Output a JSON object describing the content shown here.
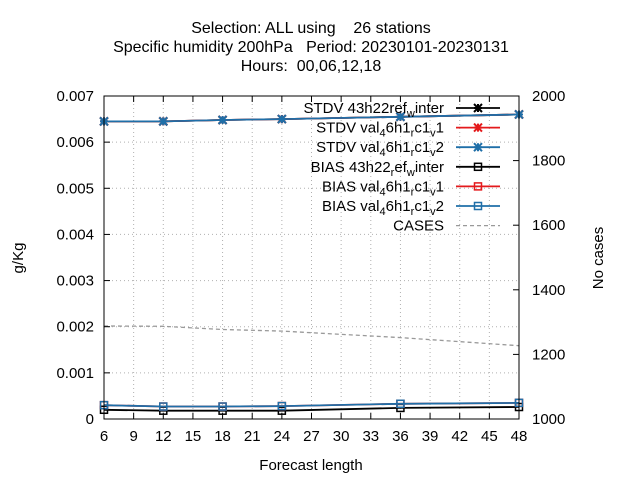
{
  "chart_data": {
    "type": "line",
    "title_lines": [
      "Selection: ALL using    26 stations",
      "Specific humidity 200hPa   Period: 20230101-20230131",
      "Hours:  00,06,12,18"
    ],
    "xlabel": "Forecast length",
    "ylabel": "g/Kg",
    "y2label": "No cases",
    "xlim": [
      6,
      48
    ],
    "ylim": [
      0,
      0.007
    ],
    "y2lim": [
      1000,
      2000
    ],
    "x_ticks": [
      6,
      9,
      12,
      15,
      18,
      21,
      24,
      27,
      30,
      33,
      36,
      39,
      42,
      45,
      48
    ],
    "y_ticks": [
      "0",
      "0.001",
      "0.002",
      "0.003",
      "0.004",
      "0.005",
      "0.006",
      "0.007"
    ],
    "y2_ticks": [
      "1000",
      "1200",
      "1400",
      "1600",
      "1800",
      "2000"
    ],
    "grid": true,
    "legend_position": "top-right",
    "x": [
      6,
      12,
      18,
      24,
      36,
      48
    ],
    "series": [
      {
        "name": "STDV 43h22_ref_winter",
        "legend": {
          "base": "STDV 43h22",
          "parts": [
            [
              "r",
              ""
            ],
            [
              "ef",
              ""
            ],
            [
              "w",
              "sub"
            ],
            [
              "inter",
              ""
            ]
          ]
        },
        "axis": "y1",
        "color": "#000000",
        "marker": "x",
        "values": [
          0.00645,
          0.00645,
          0.00648,
          0.0065,
          0.00655,
          0.0066
        ]
      },
      {
        "name": "STDV val_46h1_rc1_v1",
        "legend": {
          "base": "STDV val",
          "parts": [
            [
              "4",
              "sub"
            ],
            [
              "6h1",
              ""
            ],
            [
              "r",
              "sub"
            ],
            [
              "c1",
              ""
            ],
            [
              "v",
              "sub"
            ],
            [
              "1",
              ""
            ]
          ]
        },
        "axis": "y1",
        "color": "#e41a1c",
        "marker": "x",
        "values": [
          0.00645,
          0.00645,
          0.00648,
          0.0065,
          0.00655,
          0.0066
        ]
      },
      {
        "name": "STDV val_46h1_rc1_v2",
        "legend": {
          "base": "STDV val",
          "parts": [
            [
              "4",
              "sub"
            ],
            [
              "6h1",
              ""
            ],
            [
              "r",
              "sub"
            ],
            [
              "c1",
              ""
            ],
            [
              "v",
              "sub"
            ],
            [
              "2",
              ""
            ]
          ]
        },
        "axis": "y1",
        "color": "#1f6fa8",
        "marker": "x",
        "values": [
          0.00645,
          0.00645,
          0.00648,
          0.0065,
          0.00655,
          0.0066
        ]
      },
      {
        "name": "BIAS 43h22_ref_winter",
        "legend": {
          "base": "BIAS 43h22",
          "parts": [
            [
              "r",
              "sub"
            ],
            [
              "ef",
              ""
            ],
            [
              "w",
              "sub"
            ],
            [
              "inter",
              ""
            ]
          ]
        },
        "axis": "y1",
        "color": "#000000",
        "marker": "square",
        "values": [
          0.0002,
          0.00018,
          0.00018,
          0.00018,
          0.00024,
          0.00026
        ]
      },
      {
        "name": "BIAS val_46h1_rc1_v1",
        "legend": {
          "base": "BIAS val",
          "parts": [
            [
              "4",
              "sub"
            ],
            [
              "6h1",
              ""
            ],
            [
              "r",
              "sub"
            ],
            [
              "c1",
              ""
            ],
            [
              "v",
              "sub"
            ],
            [
              "1",
              ""
            ]
          ]
        },
        "axis": "y1",
        "color": "#e41a1c",
        "marker": "square",
        "values": [
          0.0003,
          0.00027,
          0.00027,
          0.00028,
          0.00033,
          0.00035
        ]
      },
      {
        "name": "BIAS val_46h1_rc1_v2",
        "legend": {
          "base": "BIAS val",
          "parts": [
            [
              "4",
              "sub"
            ],
            [
              "6h1",
              ""
            ],
            [
              "r",
              "sub"
            ],
            [
              "c1",
              ""
            ],
            [
              "v",
              "sub"
            ],
            [
              "2",
              ""
            ]
          ]
        },
        "axis": "y1",
        "color": "#1f6fa8",
        "marker": "square",
        "values": [
          0.0003,
          0.00027,
          0.00027,
          0.00028,
          0.00033,
          0.00035
        ]
      },
      {
        "name": "CASES",
        "legend": {
          "base": "CASES",
          "parts": []
        },
        "axis": "y2",
        "color": "#999999",
        "marker": "none",
        "dashed": true,
        "values": [
          1288,
          1287,
          1277,
          1272,
          1252,
          1227
        ]
      }
    ]
  }
}
